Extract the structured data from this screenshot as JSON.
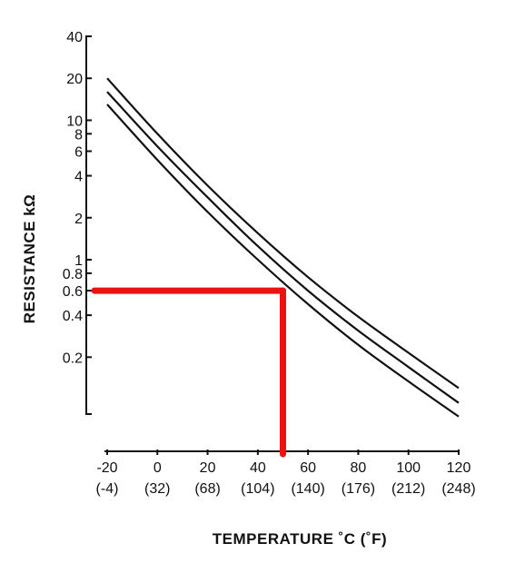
{
  "chart_data": {
    "type": "line",
    "xlabel": "TEMPERATURE ˚C (˚F)",
    "ylabel": "RESISTANCE kΩ",
    "x_scale": "linear",
    "y_scale": "log",
    "xlim": [
      -20,
      120
    ],
    "x_ticks": [
      {
        "value": -20,
        "label": "-20",
        "sublabel": "(-4)"
      },
      {
        "value": 0,
        "label": "0",
        "sublabel": "(32)"
      },
      {
        "value": 20,
        "label": "20",
        "sublabel": "(68)"
      },
      {
        "value": 40,
        "label": "40",
        "sublabel": "(104)"
      },
      {
        "value": 60,
        "label": "60",
        "sublabel": "(140)"
      },
      {
        "value": 80,
        "label": "80",
        "sublabel": "(176)"
      },
      {
        "value": 100,
        "label": "100",
        "sublabel": "(212)"
      },
      {
        "value": 120,
        "label": "120",
        "sublabel": "(248)"
      }
    ],
    "y_ticks": [
      {
        "value": 40,
        "label": "40"
      },
      {
        "value": 20,
        "label": "20"
      },
      {
        "value": 10,
        "label": "10"
      },
      {
        "value": 8,
        "label": "8"
      },
      {
        "value": 6,
        "label": "6"
      },
      {
        "value": 4,
        "label": "4"
      },
      {
        "value": 2,
        "label": "2"
      },
      {
        "value": 1,
        "label": "1"
      },
      {
        "value": 0.8,
        "label": "0.8"
      },
      {
        "value": 0.6,
        "label": "0.6"
      },
      {
        "value": 0.4,
        "label": "0.4"
      },
      {
        "value": 0.2,
        "label": "0.2"
      },
      {
        "value": 0.1,
        "label": ""
      }
    ],
    "series": [
      {
        "color": "#111111",
        "x": [
          -20,
          0,
          20,
          40,
          60,
          80,
          100,
          120
        ],
        "y": [
          20,
          8.0,
          3.4,
          1.55,
          0.75,
          0.39,
          0.215,
          0.12
        ]
      },
      {
        "color": "#111111",
        "x": [
          -20,
          0,
          20,
          40,
          60,
          80,
          100,
          120
        ],
        "y": [
          16,
          6.5,
          2.8,
          1.25,
          0.6,
          0.31,
          0.17,
          0.094
        ]
      },
      {
        "color": "#111111",
        "x": [
          -20,
          0,
          20,
          40,
          60,
          80,
          100,
          120
        ],
        "y": [
          13,
          5.2,
          2.2,
          1.0,
          0.48,
          0.245,
          0.134,
          0.075
        ]
      }
    ],
    "annotation": {
      "color": "#ee1111",
      "x": 50,
      "y": 0.6
    }
  }
}
